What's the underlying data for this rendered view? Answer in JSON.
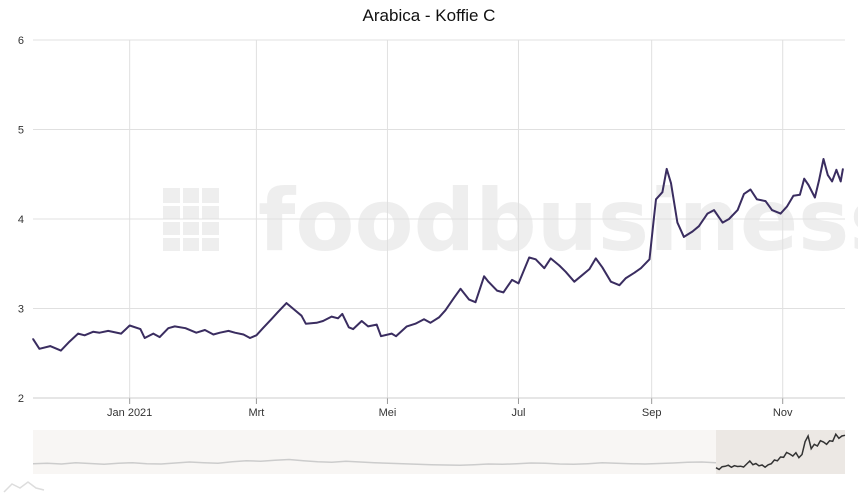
{
  "chart_data": {
    "type": "line",
    "title": "Arabica - Koffie C",
    "watermark": "foodbusiness",
    "xlabel": "",
    "ylabel": "",
    "ylim": [
      2,
      6
    ],
    "yticks": [
      2,
      3,
      4,
      5,
      6
    ],
    "xlim": [
      "2020-11-17",
      "2021-11-30"
    ],
    "xticks": [
      {
        "date": "2021-01-01",
        "label": "Jan 2021"
      },
      {
        "date": "2021-03-01",
        "label": "Mrt"
      },
      {
        "date": "2021-05-01",
        "label": "Mei"
      },
      {
        "date": "2021-07-01",
        "label": "Jul"
      },
      {
        "date": "2021-09-01",
        "label": "Sep"
      },
      {
        "date": "2021-11-01",
        "label": "Nov"
      }
    ],
    "grid": true,
    "legend": "none",
    "colors": {
      "line": "#3a2d60",
      "navigator_line": "#cccccc",
      "navigator_selected_line": "#333333",
      "navigator_bg": "#f8f6f4",
      "navigator_selection": "#ece8e4",
      "grid": "#e0e0e0"
    },
    "series": [
      {
        "points": [
          [
            "2020-11-17",
            2.66
          ],
          [
            "2020-11-20",
            2.55
          ],
          [
            "2020-11-25",
            2.58
          ],
          [
            "2020-11-30",
            2.53
          ],
          [
            "2020-12-04",
            2.63
          ],
          [
            "2020-12-08",
            2.72
          ],
          [
            "2020-12-11",
            2.7
          ],
          [
            "2020-12-15",
            2.74
          ],
          [
            "2020-12-18",
            2.73
          ],
          [
            "2020-12-22",
            2.75
          ],
          [
            "2020-12-28",
            2.72
          ],
          [
            "2021-01-01",
            2.81
          ],
          [
            "2021-01-06",
            2.77
          ],
          [
            "2021-01-08",
            2.67
          ],
          [
            "2021-01-12",
            2.72
          ],
          [
            "2021-01-15",
            2.68
          ],
          [
            "2021-01-19",
            2.78
          ],
          [
            "2021-01-22",
            2.8
          ],
          [
            "2021-01-27",
            2.78
          ],
          [
            "2021-02-01",
            2.73
          ],
          [
            "2021-02-05",
            2.76
          ],
          [
            "2021-02-09",
            2.71
          ],
          [
            "2021-02-12",
            2.73
          ],
          [
            "2021-02-16",
            2.75
          ],
          [
            "2021-02-19",
            2.73
          ],
          [
            "2021-02-23",
            2.71
          ],
          [
            "2021-02-26",
            2.67
          ],
          [
            "2021-03-01",
            2.7
          ],
          [
            "2021-03-04",
            2.78
          ],
          [
            "2021-03-08",
            2.88
          ],
          [
            "2021-03-11",
            2.96
          ],
          [
            "2021-03-15",
            3.06
          ],
          [
            "2021-03-18",
            3.0
          ],
          [
            "2021-03-22",
            2.92
          ],
          [
            "2021-03-24",
            2.83
          ],
          [
            "2021-03-29",
            2.84
          ],
          [
            "2021-04-01",
            2.86
          ],
          [
            "2021-04-05",
            2.91
          ],
          [
            "2021-04-08",
            2.89
          ],
          [
            "2021-04-10",
            2.94
          ],
          [
            "2021-04-13",
            2.79
          ],
          [
            "2021-04-15",
            2.77
          ],
          [
            "2021-04-19",
            2.86
          ],
          [
            "2021-04-22",
            2.8
          ],
          [
            "2021-04-26",
            2.82
          ],
          [
            "2021-04-28",
            2.69
          ],
          [
            "2021-05-03",
            2.72
          ],
          [
            "2021-05-05",
            2.69
          ],
          [
            "2021-05-10",
            2.8
          ],
          [
            "2021-05-14",
            2.83
          ],
          [
            "2021-05-18",
            2.88
          ],
          [
            "2021-05-21",
            2.84
          ],
          [
            "2021-05-25",
            2.9
          ],
          [
            "2021-05-28",
            2.98
          ],
          [
            "2021-06-01",
            3.12
          ],
          [
            "2021-06-04",
            3.22
          ],
          [
            "2021-06-08",
            3.1
          ],
          [
            "2021-06-11",
            3.07
          ],
          [
            "2021-06-15",
            3.36
          ],
          [
            "2021-06-17",
            3.3
          ],
          [
            "2021-06-21",
            3.2
          ],
          [
            "2021-06-24",
            3.18
          ],
          [
            "2021-06-28",
            3.32
          ],
          [
            "2021-07-01",
            3.28
          ],
          [
            "2021-07-06",
            3.57
          ],
          [
            "2021-07-09",
            3.55
          ],
          [
            "2021-07-13",
            3.45
          ],
          [
            "2021-07-16",
            3.56
          ],
          [
            "2021-07-20",
            3.48
          ],
          [
            "2021-07-23",
            3.41
          ],
          [
            "2021-07-27",
            3.3
          ],
          [
            "2021-07-30",
            3.36
          ],
          [
            "2021-08-03",
            3.44
          ],
          [
            "2021-08-06",
            3.56
          ],
          [
            "2021-08-09",
            3.46
          ],
          [
            "2021-08-13",
            3.3
          ],
          [
            "2021-08-17",
            3.26
          ],
          [
            "2021-08-20",
            3.34
          ],
          [
            "2021-08-24",
            3.4
          ],
          [
            "2021-08-27",
            3.45
          ],
          [
            "2021-08-31",
            3.55
          ],
          [
            "2021-09-02",
            4.0
          ],
          [
            "2021-09-03",
            4.22
          ],
          [
            "2021-09-06",
            4.3
          ],
          [
            "2021-09-08",
            4.56
          ],
          [
            "2021-09-10",
            4.4
          ],
          [
            "2021-09-13",
            3.96
          ],
          [
            "2021-09-16",
            3.8
          ],
          [
            "2021-09-20",
            3.86
          ],
          [
            "2021-09-23",
            3.92
          ],
          [
            "2021-09-27",
            4.06
          ],
          [
            "2021-09-30",
            4.1
          ],
          [
            "2021-10-04",
            3.96
          ],
          [
            "2021-10-07",
            4.0
          ],
          [
            "2021-10-11",
            4.1
          ],
          [
            "2021-10-14",
            4.28
          ],
          [
            "2021-10-17",
            4.33
          ],
          [
            "2021-10-20",
            4.22
          ],
          [
            "2021-10-24",
            4.2
          ],
          [
            "2021-10-27",
            4.1
          ],
          [
            "2021-10-31",
            4.06
          ],
          [
            "2021-11-03",
            4.14
          ],
          [
            "2021-11-06",
            4.26
          ],
          [
            "2021-11-09",
            4.27
          ],
          [
            "2021-11-11",
            4.45
          ],
          [
            "2021-11-13",
            4.38
          ],
          [
            "2021-11-16",
            4.24
          ],
          [
            "2021-11-18",
            4.44
          ],
          [
            "2021-11-20",
            4.67
          ],
          [
            "2021-11-22",
            4.49
          ],
          [
            "2021-11-24",
            4.42
          ],
          [
            "2021-11-26",
            4.55
          ],
          [
            "2021-11-28",
            4.42
          ],
          [
            "2021-11-29",
            4.56
          ]
        ]
      }
    ],
    "navigator": {
      "selected_range": [
        "2021-11-01",
        "2021-11-30"
      ],
      "context_values": [
        2.9,
        2.92,
        2.88,
        2.95,
        2.91,
        2.87,
        2.93,
        2.96,
        2.9,
        2.88,
        2.94,
        3.0,
        2.96,
        2.92,
        3.02,
        3.08,
        3.04,
        3.1,
        3.15,
        3.08,
        3.02,
        2.98,
        3.04,
        3.0,
        2.96,
        2.92,
        2.9,
        2.86,
        2.84,
        2.82,
        2.8,
        2.84,
        2.88,
        2.86,
        2.9,
        2.94,
        2.92,
        2.88,
        2.86,
        2.9,
        2.95,
        2.92,
        2.9,
        2.88,
        2.91,
        2.94,
        2.98,
        3.0,
        2.96
      ],
      "selected_values": [
        2.66,
        2.55,
        2.72,
        2.74,
        2.81,
        2.68,
        2.78,
        2.73,
        2.75,
        2.7,
        2.88,
        3.06,
        2.84,
        2.91,
        2.77,
        2.82,
        2.69,
        2.83,
        2.9,
        3.12,
        3.07,
        3.3,
        3.28,
        3.57,
        3.48,
        3.36,
        3.56,
        3.26,
        3.45,
        4.22,
        4.56,
        3.8,
        4.06,
        3.96,
        4.28,
        4.2,
        4.06,
        4.27,
        4.24,
        4.67,
        4.42,
        4.56,
        4.6
      ]
    }
  }
}
